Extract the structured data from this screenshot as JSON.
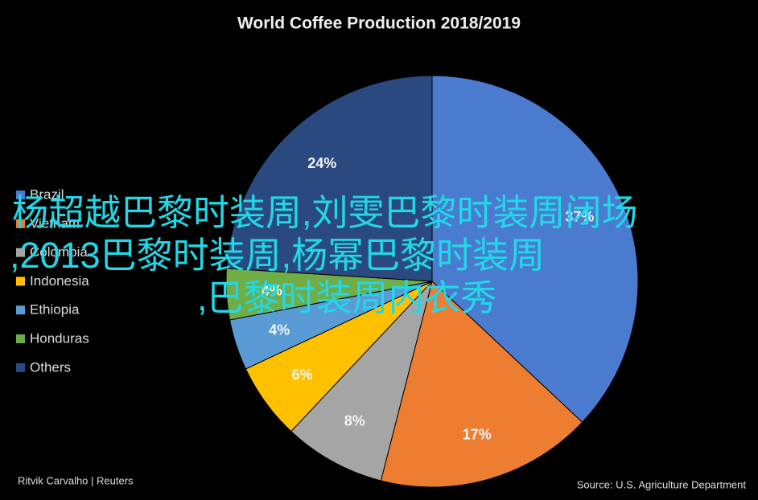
{
  "chart_data": {
    "type": "pie",
    "title": "World Coffee Production 2018/2019",
    "categories": [
      "Brazil",
      "Vietnam",
      "Colombia",
      "Indonesia",
      "Ethiopia",
      "Honduras",
      "Others"
    ],
    "values": [
      37,
      17,
      8,
      6,
      4,
      4,
      24
    ],
    "value_labels": [
      "37%",
      "17%",
      "8%",
      "6%",
      "4%",
      "4%",
      "24%"
    ],
    "colors": [
      "#4a7bcf",
      "#ed7d31",
      "#a5a5a5",
      "#ffc000",
      "#5b9bd5",
      "#70ad47",
      "#2a4a7f"
    ],
    "legend": "left",
    "credit": "Ritvik Carvalho | Reuters",
    "source": "Source: U.S. Agriculture Department"
  },
  "overlay": {
    "lines": [
      "杨超越巴黎时装周,刘雯巴黎时装周闭场",
      ",2013巴黎时装周,杨幂巴黎时装周",
      ",巴黎时装周内衣秀"
    ]
  }
}
